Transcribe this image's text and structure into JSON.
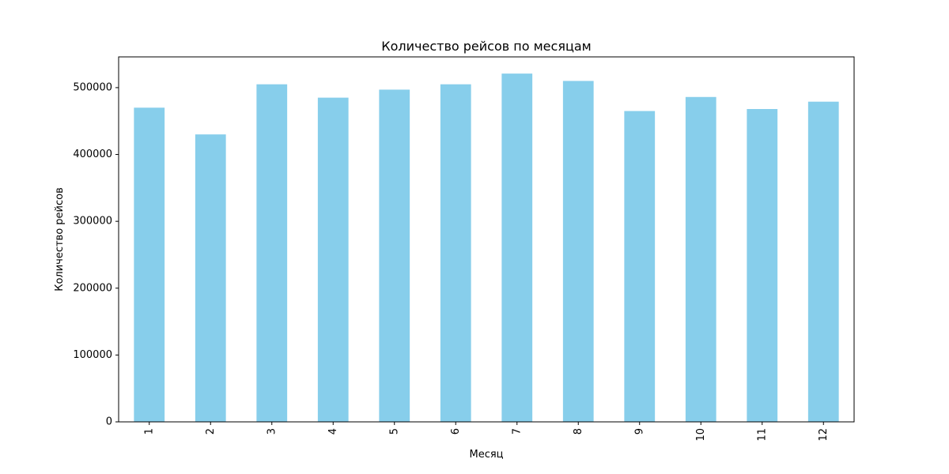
{
  "chart_data": {
    "type": "bar",
    "title": "Количество рейсов по месяцам",
    "xlabel": "Месяц",
    "ylabel": "Количество рейсов",
    "categories": [
      "1",
      "2",
      "3",
      "4",
      "5",
      "6",
      "7",
      "8",
      "9",
      "10",
      "11",
      "12"
    ],
    "values": [
      470000,
      430000,
      505000,
      485000,
      497000,
      505000,
      521000,
      510000,
      465000,
      486000,
      468000,
      479000
    ],
    "ylim": [
      0,
      546000
    ],
    "yticks": [
      0,
      100000,
      200000,
      300000,
      400000,
      500000
    ],
    "ytick_labels": [
      "0",
      "100000",
      "200000",
      "300000",
      "400000",
      "500000"
    ],
    "bar_color": "#87ceeb",
    "grid": false,
    "legend": "none"
  }
}
